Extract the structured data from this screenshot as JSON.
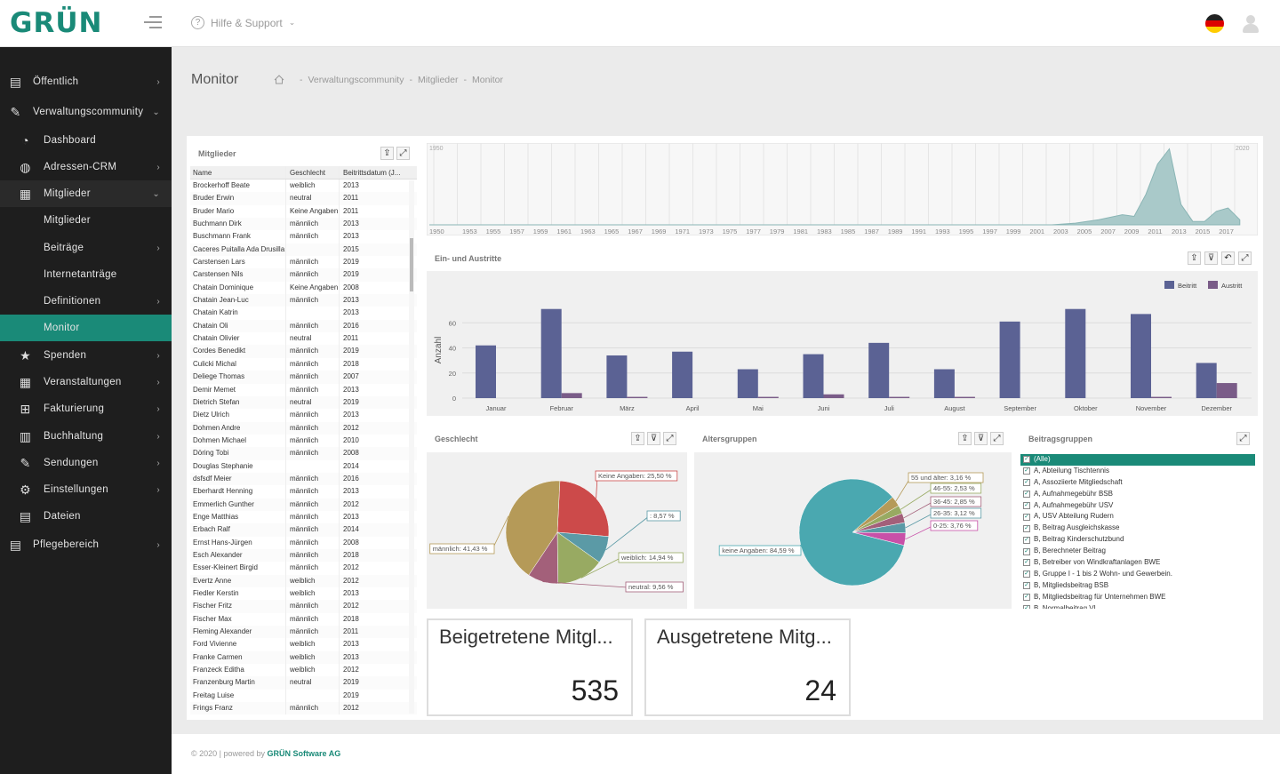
{
  "header": {
    "logo": "GRÜN",
    "help_label": "Hilfe & Support"
  },
  "sidebar": {
    "items": [
      {
        "label": "Öffentlich",
        "icon": "newspaper-icon",
        "level": 0
      },
      {
        "label": "Verwaltungscommunity",
        "icon": "pencil-icon",
        "level": 0,
        "expanded": true
      },
      {
        "label": "Dashboard",
        "icon": "dashboard-icon",
        "level": 1
      },
      {
        "label": "Adressen-CRM",
        "icon": "globe-icon",
        "level": 1,
        "chevron": true
      },
      {
        "label": "Mitglieder",
        "icon": "members-icon",
        "level": 1,
        "expanded": true,
        "highlight": true
      },
      {
        "label": "Mitglieder",
        "level": 2
      },
      {
        "label": "Beiträge",
        "level": 2,
        "chevron": true
      },
      {
        "label": "Internetanträge",
        "level": 2
      },
      {
        "label": "Definitionen",
        "level": 2,
        "chevron": true
      },
      {
        "label": "Monitor",
        "level": 2,
        "active": true
      },
      {
        "label": "Spenden",
        "icon": "star-icon",
        "level": 1,
        "chevron": true
      },
      {
        "label": "Veranstaltungen",
        "icon": "grid-icon",
        "level": 1,
        "chevron": true
      },
      {
        "label": "Fakturierung",
        "icon": "invoice-icon",
        "level": 1,
        "chevron": true
      },
      {
        "label": "Buchhaltung",
        "icon": "book-icon",
        "level": 1,
        "chevron": true
      },
      {
        "label": "Sendungen",
        "icon": "send-icon",
        "level": 1,
        "chevron": true
      },
      {
        "label": "Einstellungen",
        "icon": "gear-icon",
        "level": 1,
        "chevron": true
      },
      {
        "label": "Dateien",
        "icon": "file-icon",
        "level": 1
      },
      {
        "label": "Pflegebereich",
        "icon": "newspaper-icon",
        "level": 0,
        "chevron": true
      }
    ]
  },
  "page": {
    "title": "Monitor",
    "breadcrumb": [
      "Verwaltungscommunity",
      "Mitglieder",
      "Monitor"
    ]
  },
  "members_panel": {
    "title": "Mitglieder",
    "columns": [
      "Name",
      "Geschlecht",
      "Beitrittsdatum (J..."
    ],
    "rows": [
      [
        "Brockerhoff Beate",
        "weiblich",
        "2013"
      ],
      [
        "Bruder Erwin",
        "neutral",
        "2011"
      ],
      [
        "Bruder Mario",
        "Keine Angaben",
        "2011"
      ],
      [
        "Buchmann Dirk",
        "männlich",
        "2013"
      ],
      [
        "Buschmann Frank",
        "männlich",
        "2013"
      ],
      [
        "Caceres Puitalla Ada Drusilla",
        "",
        "2015"
      ],
      [
        "Carstensen Lars",
        "männlich",
        "2019"
      ],
      [
        "Carstensen Nils",
        "männlich",
        "2019"
      ],
      [
        "Chatain Dominique",
        "Keine Angaben",
        "2008"
      ],
      [
        "Chatain Jean-Luc",
        "männlich",
        "2013"
      ],
      [
        "Chatain Katrin",
        "",
        "2013"
      ],
      [
        "Chatain Oli",
        "männlich",
        "2016"
      ],
      [
        "Chatain Olivier",
        "neutral",
        "2011"
      ],
      [
        "Cordes Benedikt",
        "männlich",
        "2019"
      ],
      [
        "Culicki Michal",
        "männlich",
        "2018"
      ],
      [
        "Deliege Thomas",
        "männlich",
        "2007"
      ],
      [
        "Demir Memet",
        "männlich",
        "2013"
      ],
      [
        "Dietrich Stefan",
        "neutral",
        "2019"
      ],
      [
        "Dietz Ulrich",
        "männlich",
        "2013"
      ],
      [
        "Dohmen Andre",
        "männlich",
        "2012"
      ],
      [
        "Dohmen Michael",
        "männlich",
        "2010"
      ],
      [
        "Döring Tobi",
        "männlich",
        "2008"
      ],
      [
        "Douglas Stephanie",
        "",
        "2014"
      ],
      [
        "dsfsdf Meier",
        "männlich",
        "2016"
      ],
      [
        "Eberhardt Henning",
        "männlich",
        "2013"
      ],
      [
        "Emmerlich Gunther",
        "männlich",
        "2012"
      ],
      [
        "Enge Matthias",
        "männlich",
        "2013"
      ],
      [
        "Erbach Ralf",
        "männlich",
        "2014"
      ],
      [
        "Ernst Hans-Jürgen",
        "männlich",
        "2008"
      ],
      [
        "Esch Alexander",
        "männlich",
        "2018"
      ],
      [
        "Esser-Kleinert Birgid",
        "männlich",
        "2012"
      ],
      [
        "Evertz Anne",
        "weiblich",
        "2012"
      ],
      [
        "Fiedler Kerstin",
        "weiblich",
        "2013"
      ],
      [
        "Fischer Fritz",
        "männlich",
        "2012"
      ],
      [
        "Fischer Max",
        "männlich",
        "2018"
      ],
      [
        "Fleming Alexander",
        "männlich",
        "2011"
      ],
      [
        "Ford Vivienne",
        "weiblich",
        "2013"
      ],
      [
        "Franke Carmen",
        "weiblich",
        "2013"
      ],
      [
        "Franzeck Editha",
        "weiblich",
        "2012"
      ],
      [
        "Franzenburg Martin",
        "neutral",
        "2019"
      ],
      [
        "Freitag Luise",
        "",
        "2019"
      ],
      [
        "Frings Franz",
        "männlich",
        "2012"
      ]
    ]
  },
  "chart_data": [
    {
      "type": "area",
      "title": "",
      "x_start_label": "1950",
      "x_end_label": "2020",
      "tick_labels": [
        "1950",
        "1953",
        "1955",
        "1957",
        "1959",
        "1961",
        "1963",
        "1965",
        "1967",
        "1969",
        "1971",
        "1973",
        "1975",
        "1977",
        "1979",
        "1981",
        "1983",
        "1985",
        "1987",
        "1989",
        "1991",
        "1993",
        "1995",
        "1997",
        "1999",
        "2001",
        "2003",
        "2005",
        "2007",
        "2009",
        "2011",
        "2013",
        "2015",
        "2017"
      ],
      "x": [
        1950,
        2003,
        2005,
        2007,
        2009,
        2010,
        2011,
        2012,
        2013,
        2014,
        2015,
        2016,
        2017,
        2018,
        2019
      ],
      "values": [
        0,
        0,
        1,
        3,
        6,
        5,
        18,
        36,
        45,
        12,
        2,
        2,
        8,
        10,
        3
      ]
    },
    {
      "type": "bar",
      "title": "Ein- und Austritte",
      "ylabel": "Anzahl",
      "ylim": [
        0,
        80
      ],
      "yticks": [
        0,
        20,
        40,
        60
      ],
      "categories": [
        "Januar",
        "Februar",
        "März",
        "April",
        "Mai",
        "Juni",
        "Juli",
        "August",
        "September",
        "Oktober",
        "November",
        "Dezember"
      ],
      "legend_position": "top-right",
      "series": [
        {
          "name": "Beitritt",
          "color": "#5b6294",
          "values": [
            42,
            71,
            34,
            37,
            23,
            35,
            44,
            23,
            61,
            71,
            67,
            28
          ]
        },
        {
          "name": "Austritt",
          "color": "#7a5c88",
          "values": [
            0,
            4,
            1,
            0,
            1,
            3,
            1,
            1,
            0,
            0,
            1,
            12
          ]
        }
      ]
    },
    {
      "type": "pie",
      "title": "Geschlecht",
      "slices": [
        {
          "label": "Keine Angaben: 25,50 %",
          "value": 25.5,
          "color": "#cc4a4a"
        },
        {
          "label": ": 8,57 %",
          "value": 8.57,
          "color": "#5b9aa6"
        },
        {
          "label": "weiblich: 14,94 %",
          "value": 14.94,
          "color": "#98aa62"
        },
        {
          "label": "neutral: 9,56 %",
          "value": 9.56,
          "color": "#a3607a"
        },
        {
          "label": "männlich: 41,43 %",
          "value": 41.43,
          "color": "#b59a58"
        }
      ]
    },
    {
      "type": "pie",
      "title": "Altersgruppen",
      "slices": [
        {
          "label": "55 und älter: 3,16 %",
          "value": 3.16,
          "color": "#b59a58"
        },
        {
          "label": "46-55: 2,53 %",
          "value": 2.53,
          "color": "#98aa62"
        },
        {
          "label": "36-45: 2,85 %",
          "value": 2.85,
          "color": "#a3607a"
        },
        {
          "label": "26-35: 3,12 %",
          "value": 3.12,
          "color": "#5b9aa6"
        },
        {
          "label": "0-25: 3,76 %",
          "value": 3.76,
          "color": "#c850a8"
        },
        {
          "label": "keine Angaben: 84,59 %",
          "value": 84.59,
          "color": "#4aa8b0"
        }
      ]
    }
  ],
  "beitragsgruppen": {
    "title": "Beitragsgruppen",
    "items": [
      "(Alle)",
      "A, Abteilung Tischtennis",
      "A, Assoziierte Mitgliedschaft",
      "A, Aufnahmegebühr BSB",
      "A, Aufnahmegebühr USV",
      "A, USV Abteilung Rudern",
      "B, Beitrag Ausgleichskasse",
      "B, Beitrag Kinderschutzbund",
      "B, Berechneter Beitrag",
      "B, Betreiber von Windkraftanlagen BWE",
      "B, Gruppe I - 1 bis 2 Wohn- und Gewerbein.",
      "B, Mitgliedsbeitrag BSB",
      "B, Mitgliedsbeitrag für Unternehmen BWE",
      "B, Normalbeitrag VL"
    ]
  },
  "cards": [
    {
      "title": "Beigetretene Mitgl...",
      "value": "535"
    },
    {
      "title": "Ausgetretene Mitg...",
      "value": "24"
    }
  ],
  "footer": {
    "text": "© 2020 | powered by ",
    "brand": "GRÜN Software AG"
  },
  "colors": {
    "accent": "#1a8a78",
    "sidebar": "#1e1e1e"
  }
}
